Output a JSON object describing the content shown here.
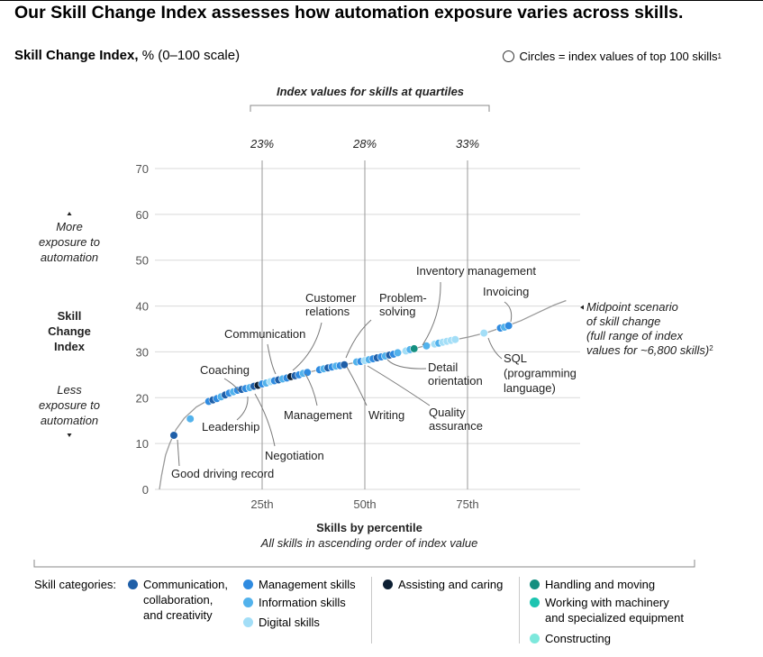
{
  "header": {
    "title": "Our Skill Change Index assesses how automation exposure varies across skills.",
    "subtitle_bold": "Skill Change Index,",
    "subtitle_rest": " % (0–100 scale)",
    "note": "Circles = index values of top 100 skills",
    "note_sup": "1"
  },
  "chart_data": {
    "type": "scatter",
    "title": "Skill Change Index",
    "ylabel": "Skill Change Index",
    "xlabel": "Skills by percentile",
    "xlabel_sub": "All skills in ascending order of index value",
    "ylim": [
      0,
      70
    ],
    "yticks": [
      0,
      10,
      20,
      30,
      40,
      50,
      60,
      70
    ],
    "xlim": [
      0,
      100
    ],
    "xtick_labels": [
      {
        "x": 25,
        "label": "25th"
      },
      {
        "x": 50,
        "label": "50th"
      },
      {
        "x": 75,
        "label": "75th"
      }
    ],
    "y_axis_labels": {
      "more": "More exposure to automation",
      "less": "Less exposure to automation",
      "center": "Skill Change Index"
    },
    "quartiles": {
      "heading": "Index values for skills at quartiles",
      "values": [
        {
          "percentile": 25,
          "label": "23%"
        },
        {
          "percentile": 50,
          "label": "28%"
        },
        {
          "percentile": 75,
          "label": "33%"
        }
      ]
    },
    "curve_label": "Midpoint scenario of skill change (full range of index values for ~6,800 skills)",
    "curve_label_sup": "2",
    "curve": [
      [
        0,
        0
      ],
      [
        0.5,
        3
      ],
      [
        1.5,
        7.5
      ],
      [
        2.5,
        10
      ],
      [
        4,
        13
      ],
      [
        6,
        15.5
      ],
      [
        9,
        18
      ],
      [
        12,
        19.5
      ],
      [
        15,
        20.4
      ],
      [
        20,
        21.5
      ],
      [
        25,
        22.9
      ],
      [
        30,
        24.1
      ],
      [
        35,
        25.3
      ],
      [
        40,
        26.3
      ],
      [
        45,
        27.2
      ],
      [
        50,
        28.1
      ],
      [
        55,
        29.1
      ],
      [
        60,
        30.2
      ],
      [
        65,
        31.4
      ],
      [
        70,
        32.3
      ],
      [
        75,
        33.2
      ],
      [
        80,
        34.3
      ],
      [
        85,
        35.8
      ],
      [
        88,
        36.8
      ],
      [
        92,
        38.5
      ],
      [
        96,
        40.2
      ],
      [
        99,
        41.2
      ]
    ],
    "categories": [
      {
        "key": "comm",
        "name": "Communication, collaboration, and creativity",
        "color": "#1f5fa8"
      },
      {
        "key": "mgmt",
        "name": "Management skills",
        "color": "#2f8be0"
      },
      {
        "key": "info",
        "name": "Information skills",
        "color": "#52b2ec"
      },
      {
        "key": "digi",
        "name": "Digital skills",
        "color": "#a3def7"
      },
      {
        "key": "assist",
        "name": "Assisting and caring",
        "color": "#0d1f33"
      },
      {
        "key": "handle",
        "name": "Handling and moving",
        "color": "#148f80"
      },
      {
        "key": "machine",
        "name": "Working with machinery and specialized equipment",
        "color": "#1dc4b0"
      },
      {
        "key": "construct",
        "name": "Constructing",
        "color": "#7de8dc"
      }
    ],
    "points": [
      {
        "x": 3.5,
        "y": 11.8,
        "c": "comm"
      },
      {
        "x": 7.5,
        "y": 15.4,
        "c": "info"
      },
      {
        "x": 12,
        "y": 19.2,
        "c": "mgmt"
      },
      {
        "x": 13,
        "y": 19.5,
        "c": "comm"
      },
      {
        "x": 14,
        "y": 19.8,
        "c": "mgmt"
      },
      {
        "x": 15,
        "y": 20.2,
        "c": "info"
      },
      {
        "x": 16,
        "y": 20.6,
        "c": "comm"
      },
      {
        "x": 17,
        "y": 21.0,
        "c": "mgmt"
      },
      {
        "x": 18,
        "y": 21.3,
        "c": "info"
      },
      {
        "x": 19,
        "y": 21.6,
        "c": "mgmt"
      },
      {
        "x": 20,
        "y": 21.8,
        "c": "comm"
      },
      {
        "x": 21,
        "y": 22.0,
        "c": "mgmt"
      },
      {
        "x": 22,
        "y": 22.2,
        "c": "info"
      },
      {
        "x": 23,
        "y": 22.5,
        "c": "comm"
      },
      {
        "x": 24,
        "y": 22.7,
        "c": "assist"
      },
      {
        "x": 25,
        "y": 23.0,
        "c": "mgmt"
      },
      {
        "x": 26,
        "y": 23.2,
        "c": "info"
      },
      {
        "x": 27,
        "y": 23.5,
        "c": "digi"
      },
      {
        "x": 28,
        "y": 23.7,
        "c": "mgmt"
      },
      {
        "x": 29,
        "y": 23.9,
        "c": "comm"
      },
      {
        "x": 30,
        "y": 24.1,
        "c": "info"
      },
      {
        "x": 31,
        "y": 24.3,
        "c": "mgmt"
      },
      {
        "x": 32,
        "y": 24.6,
        "c": "assist"
      },
      {
        "x": 33,
        "y": 24.8,
        "c": "comm"
      },
      {
        "x": 34,
        "y": 25.0,
        "c": "mgmt"
      },
      {
        "x": 35,
        "y": 25.3,
        "c": "info"
      },
      {
        "x": 36,
        "y": 25.5,
        "c": "mgmt"
      },
      {
        "x": 39,
        "y": 26.1,
        "c": "mgmt"
      },
      {
        "x": 40,
        "y": 26.3,
        "c": "info"
      },
      {
        "x": 41,
        "y": 26.5,
        "c": "comm"
      },
      {
        "x": 42,
        "y": 26.7,
        "c": "mgmt"
      },
      {
        "x": 43,
        "y": 26.9,
        "c": "info"
      },
      {
        "x": 44,
        "y": 27.0,
        "c": "mgmt"
      },
      {
        "x": 45,
        "y": 27.2,
        "c": "comm"
      },
      {
        "x": 48,
        "y": 27.8,
        "c": "info"
      },
      {
        "x": 49,
        "y": 27.9,
        "c": "mgmt"
      },
      {
        "x": 50,
        "y": 28.1,
        "c": "digi"
      },
      {
        "x": 51,
        "y": 28.3,
        "c": "info"
      },
      {
        "x": 52,
        "y": 28.5,
        "c": "mgmt"
      },
      {
        "x": 53,
        "y": 28.7,
        "c": "comm"
      },
      {
        "x": 54,
        "y": 28.9,
        "c": "mgmt"
      },
      {
        "x": 55,
        "y": 29.1,
        "c": "info"
      },
      {
        "x": 56,
        "y": 29.3,
        "c": "comm"
      },
      {
        "x": 57,
        "y": 29.5,
        "c": "mgmt"
      },
      {
        "x": 58,
        "y": 29.8,
        "c": "info"
      },
      {
        "x": 60,
        "y": 30.2,
        "c": "digi"
      },
      {
        "x": 61,
        "y": 30.5,
        "c": "info"
      },
      {
        "x": 62,
        "y": 30.7,
        "c": "handle"
      },
      {
        "x": 65,
        "y": 31.3,
        "c": "info"
      },
      {
        "x": 67,
        "y": 31.7,
        "c": "digi"
      },
      {
        "x": 68,
        "y": 31.9,
        "c": "info"
      },
      {
        "x": 69,
        "y": 32.1,
        "c": "digi"
      },
      {
        "x": 70,
        "y": 32.3,
        "c": "digi"
      },
      {
        "x": 71,
        "y": 32.5,
        "c": "digi"
      },
      {
        "x": 72,
        "y": 32.7,
        "c": "digi"
      },
      {
        "x": 79,
        "y": 34.1,
        "c": "digi"
      },
      {
        "x": 83,
        "y": 35.2,
        "c": "mgmt"
      },
      {
        "x": 84,
        "y": 35.4,
        "c": "info"
      },
      {
        "x": 85,
        "y": 35.7,
        "c": "mgmt"
      }
    ],
    "annotations": [
      {
        "key": "driving",
        "lines": [
          "Good driving record"
        ]
      },
      {
        "key": "leadership",
        "lines": [
          "Leadership"
        ]
      },
      {
        "key": "coaching",
        "lines": [
          "Coaching"
        ]
      },
      {
        "key": "negotiation",
        "lines": [
          "Negotiation"
        ]
      },
      {
        "key": "communication",
        "lines": [
          "Communication"
        ]
      },
      {
        "key": "customer",
        "lines": [
          "Customer",
          "relations"
        ]
      },
      {
        "key": "management",
        "lines": [
          "Management"
        ]
      },
      {
        "key": "problem",
        "lines": [
          "Problem-",
          "solving"
        ]
      },
      {
        "key": "writing",
        "lines": [
          "Writing"
        ]
      },
      {
        "key": "quality",
        "lines": [
          "Quality",
          "assurance"
        ]
      },
      {
        "key": "detail",
        "lines": [
          "Detail",
          "orientation"
        ]
      },
      {
        "key": "inventory",
        "lines": [
          "Inventory management"
        ]
      },
      {
        "key": "invoicing",
        "lines": [
          "Invoicing"
        ]
      },
      {
        "key": "sql",
        "lines": [
          "SQL",
          "(programming",
          "language)"
        ]
      }
    ]
  },
  "legend": {
    "label": "Skill categories:",
    "items": [
      {
        "lines": [
          "Communication,",
          "collaboration,",
          "and creativity"
        ],
        "color": "#1f5fa8"
      },
      {
        "lines": [
          "Management skills"
        ],
        "color": "#2f8be0"
      },
      {
        "lines": [
          "Information skills"
        ],
        "color": "#52b2ec"
      },
      {
        "lines": [
          "Digital skills"
        ],
        "color": "#a3def7"
      },
      {
        "lines": [
          "Assisting and caring"
        ],
        "color": "#0d1f33"
      },
      {
        "lines": [
          "Handling and moving"
        ],
        "color": "#148f80"
      },
      {
        "lines": [
          "Working with machinery",
          "and specialized equipment"
        ],
        "color": "#1dc4b0"
      },
      {
        "lines": [
          "Constructing"
        ],
        "color": "#7de8dc"
      }
    ]
  }
}
